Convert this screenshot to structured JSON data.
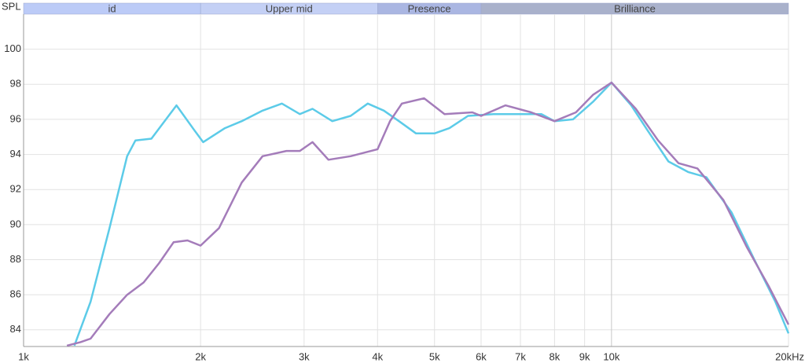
{
  "chart_data": {
    "type": "line",
    "y_label": "SPL",
    "xscale": "log",
    "grid": true,
    "bands": [
      {
        "label": "id",
        "from": 1000,
        "to": 2000,
        "color": "#bccbf7"
      },
      {
        "label": "Upper mid",
        "from": 2000,
        "to": 4000,
        "color": "#c4d0f5"
      },
      {
        "label": "Presence",
        "from": 4000,
        "to": 6000,
        "color": "#aab6e2"
      },
      {
        "label": "Brilliance",
        "from": 6000,
        "to": 20000,
        "color": "#a9b1cb"
      }
    ],
    "xlim": [
      1000,
      20000
    ],
    "xticks": [
      {
        "value": 1000,
        "label": "1k"
      },
      {
        "value": 2000,
        "label": "2k"
      },
      {
        "value": 3000,
        "label": "3k"
      },
      {
        "value": 4000,
        "label": "4k"
      },
      {
        "value": 5000,
        "label": "5k"
      },
      {
        "value": 6000,
        "label": "6k"
      },
      {
        "value": 7000,
        "label": "7k"
      },
      {
        "value": 8000,
        "label": "8k"
      },
      {
        "value": 9000,
        "label": "9k"
      },
      {
        "value": 10000,
        "label": "10k"
      },
      {
        "value": 20000,
        "label": "20kHz"
      }
    ],
    "ylim": [
      83.05,
      102
    ],
    "yticks": [
      84,
      86,
      88,
      90,
      92,
      94,
      96,
      98,
      100
    ],
    "series": [
      {
        "color": "#5ccbe8",
        "x": [
          1220,
          1300,
          1400,
          1500,
          1550,
          1650,
          1820,
          1950,
          2020,
          2200,
          2350,
          2550,
          2750,
          2950,
          3100,
          3350,
          3600,
          3850,
          4100,
          4350,
          4650,
          5000,
          5300,
          5700,
          6300,
          7000,
          7600,
          8000,
          8600,
          9300,
          10000,
          10800,
          11500,
          12500,
          13500,
          14500,
          16000,
          17500,
          19000,
          20000
        ],
        "values": [
          83.1,
          85.6,
          89.8,
          93.9,
          94.8,
          94.9,
          96.8,
          95.4,
          94.7,
          95.5,
          95.9,
          96.5,
          96.9,
          96.3,
          96.6,
          95.9,
          96.2,
          96.9,
          96.5,
          95.9,
          95.2,
          95.2,
          95.5,
          96.2,
          96.3,
          96.3,
          96.3,
          95.9,
          96.0,
          97.0,
          98.1,
          96.8,
          95.4,
          93.6,
          93.0,
          92.7,
          90.7,
          88.0,
          85.6,
          83.8
        ]
      },
      {
        "color": "#a47cba",
        "x": [
          1185,
          1250,
          1300,
          1400,
          1500,
          1600,
          1700,
          1800,
          1900,
          2000,
          2150,
          2350,
          2550,
          2800,
          2950,
          3100,
          3300,
          3600,
          4000,
          4200,
          4400,
          4800,
          5200,
          5800,
          6000,
          6600,
          7300,
          8000,
          8700,
          9300,
          10000,
          11000,
          12000,
          13000,
          14000,
          15500,
          17000,
          18500,
          20000
        ],
        "values": [
          83.1,
          83.3,
          83.5,
          84.9,
          86.0,
          86.7,
          87.8,
          89.0,
          89.1,
          88.8,
          89.8,
          92.4,
          93.9,
          94.2,
          94.2,
          94.7,
          93.7,
          93.9,
          94.3,
          95.9,
          96.9,
          97.2,
          96.3,
          96.4,
          96.2,
          96.8,
          96.4,
          95.9,
          96.4,
          97.4,
          98.1,
          96.6,
          94.8,
          93.5,
          93.2,
          91.4,
          88.7,
          86.5,
          84.3
        ]
      }
    ]
  }
}
